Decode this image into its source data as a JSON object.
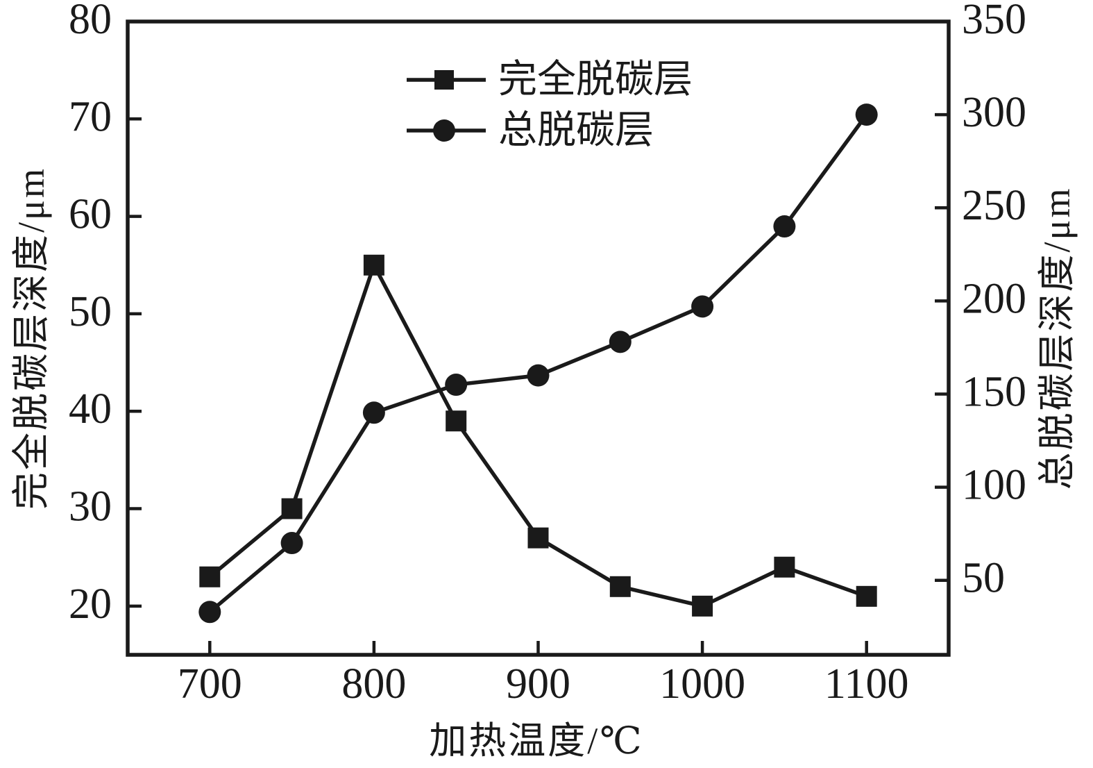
{
  "chart_data": {
    "type": "line",
    "title": "",
    "xlabel": "加热温度/℃",
    "ylabel_left": "完全脱碳层深度/μm",
    "ylabel_right": "总脱碳层深度/μm",
    "x": [
      700,
      750,
      800,
      850,
      900,
      950,
      1000,
      1050,
      1100
    ],
    "series": [
      {
        "name": "完全脱碳层",
        "axis": "left",
        "marker": "square",
        "values": [
          23,
          30,
          55,
          39,
          27,
          22,
          20,
          24,
          21
        ]
      },
      {
        "name": "总脱碳层",
        "axis": "right",
        "marker": "circle",
        "values": [
          33,
          70,
          140,
          155,
          160,
          178,
          197,
          240,
          300
        ]
      }
    ],
    "x_ticks": [
      700,
      800,
      900,
      1000,
      1100
    ],
    "y_left_ticks": [
      20,
      30,
      40,
      50,
      60,
      70,
      80
    ],
    "y_right_ticks": [
      50,
      100,
      150,
      200,
      250,
      300,
      350
    ],
    "x_range": [
      650,
      1150
    ],
    "y_left_range": [
      15,
      80
    ],
    "y_right_range": [
      10,
      350
    ],
    "grid": false,
    "legend_position": "top-center-inside",
    "line_color": "#1a1a1a",
    "background": "#ffffff"
  }
}
